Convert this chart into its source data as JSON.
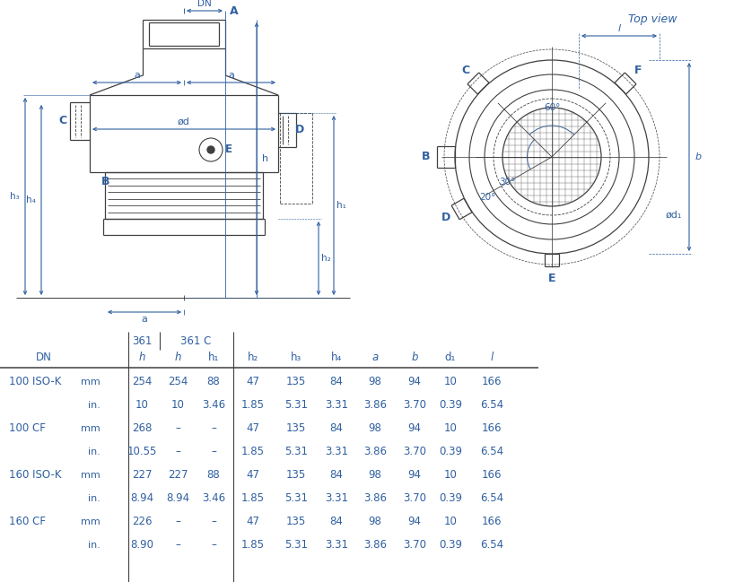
{
  "text_color": "#3060a0",
  "line_color": "#404040",
  "bg_color": "#ffffff",
  "table": {
    "rows": [
      [
        "100 ISO-K",
        "mm",
        "254",
        "254",
        "88",
        "47",
        "135",
        "84",
        "98",
        "94",
        "10",
        "166"
      ],
      [
        "",
        "in.",
        "10",
        "10",
        "3.46",
        "1.85",
        "5.31",
        "3.31",
        "3.86",
        "3.70",
        "0.39",
        "6.54"
      ],
      [
        "100 CF",
        "mm",
        "268",
        "–",
        "–",
        "47",
        "135",
        "84",
        "98",
        "94",
        "10",
        "166"
      ],
      [
        "",
        "in.",
        "10.55",
        "–",
        "–",
        "1.85",
        "5.31",
        "3.31",
        "3.86",
        "3.70",
        "0.39",
        "6.54"
      ],
      [
        "160 ISO-K",
        "mm",
        "227",
        "227",
        "88",
        "47",
        "135",
        "84",
        "98",
        "94",
        "10",
        "166"
      ],
      [
        "",
        "in.",
        "8.94",
        "8.94",
        "3.46",
        "1.85",
        "5.31",
        "3.31",
        "3.86",
        "3.70",
        "0.39",
        "6.54"
      ],
      [
        "160 CF",
        "mm",
        "226",
        "–",
        "–",
        "47",
        "135",
        "84",
        "98",
        "94",
        "10",
        "166"
      ],
      [
        "",
        "in.",
        "8.90",
        "–",
        "–",
        "1.85",
        "5.31",
        "3.31",
        "3.86",
        "3.70",
        "0.39",
        "6.54"
      ]
    ]
  }
}
